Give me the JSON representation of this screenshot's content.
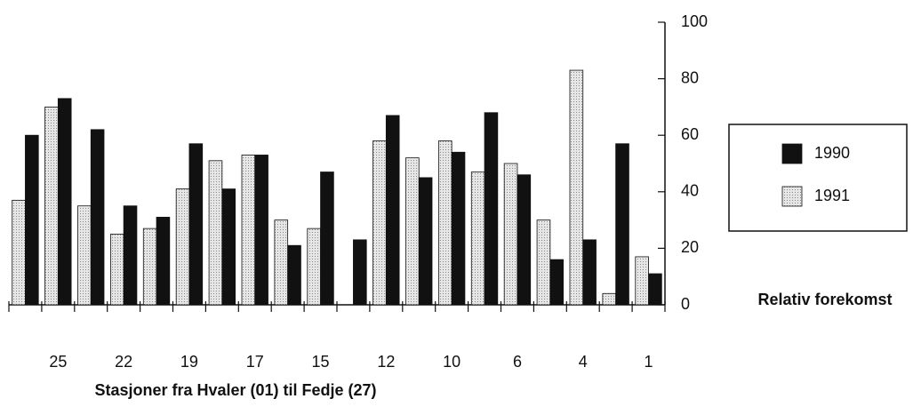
{
  "chart_data": {
    "type": "bar",
    "xlabel": "Stasjoner fra Hvaler (01) til Fedje (27)",
    "ylabel": "Relativ forekomst",
    "categories": [
      null,
      "25",
      null,
      "22",
      null,
      "19",
      null,
      "17",
      null,
      "15",
      null,
      "12",
      null,
      "10",
      null,
      "6",
      null,
      "4",
      null,
      "1"
    ],
    "series": [
      {
        "name": "1991",
        "color": "#d9d9d9",
        "values": [
          37,
          70,
          35,
          25,
          27,
          41,
          51,
          53,
          30,
          27,
          null,
          58,
          52,
          58,
          47,
          50,
          30,
          83,
          4,
          17
        ]
      },
      {
        "name": "1990",
        "color": "#111111",
        "values": [
          60,
          73,
          62,
          35,
          31,
          57,
          41,
          53,
          21,
          47,
          23,
          67,
          45,
          54,
          68,
          46,
          16,
          23,
          57,
          11
        ]
      }
    ],
    "ylim": [
      0,
      100
    ],
    "yticks": [
      0,
      20,
      40,
      60,
      80,
      100
    ],
    "legend": "right"
  }
}
